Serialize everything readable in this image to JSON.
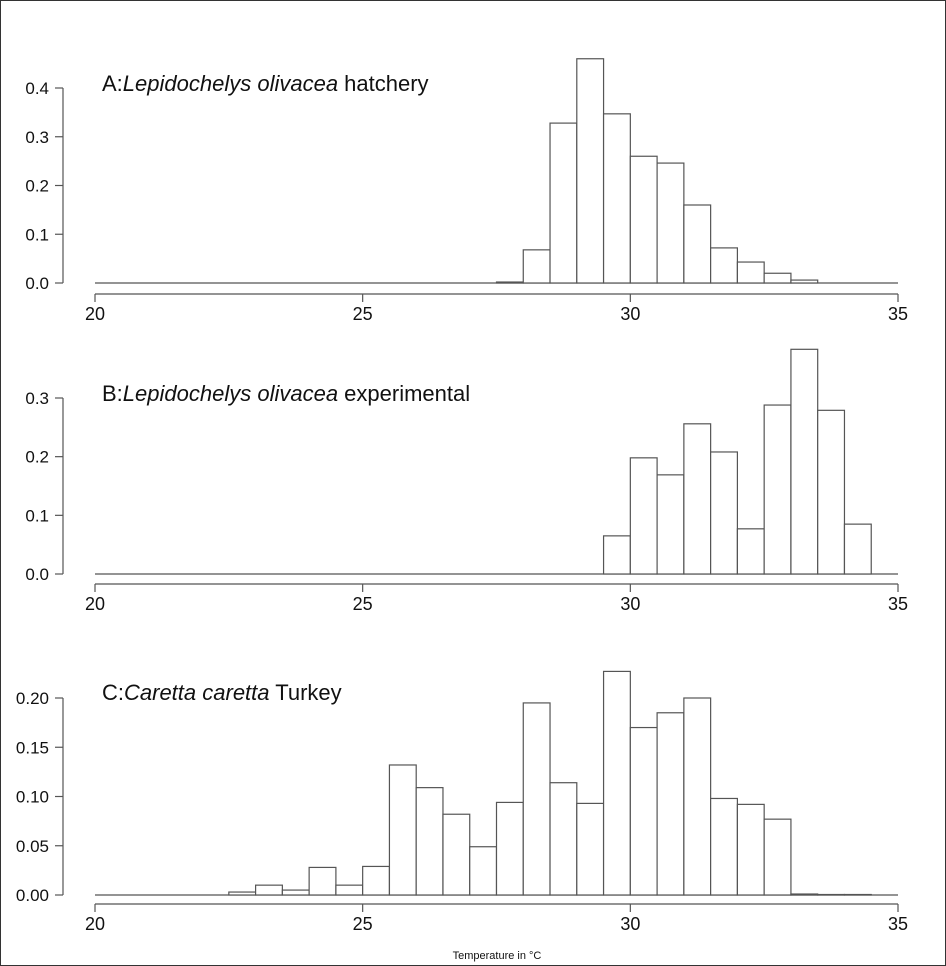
{
  "chart_data": [
    {
      "type": "bar",
      "title_prefix": "A:",
      "title_italic": "Lepidochelys olivacea",
      "title_suffix": " hatchery",
      "bin_width": 0.5,
      "bin_starts": [
        27.5,
        28,
        28.5,
        29,
        29.5,
        30,
        30.5,
        31,
        31.5,
        32,
        32.5,
        33
      ],
      "values": [
        0.002,
        0.068,
        0.328,
        0.46,
        0.347,
        0.26,
        0.246,
        0.16,
        0.072,
        0.043,
        0.02,
        0.006
      ],
      "xlim": [
        20,
        35
      ],
      "ylim": [
        0,
        0.4
      ],
      "xticks": [
        "20",
        "25",
        "30",
        "35"
      ],
      "yticks": [
        "0.0",
        "0.1",
        "0.2",
        "0.3",
        "0.4"
      ]
    },
    {
      "type": "bar",
      "title_prefix": "B:",
      "title_italic": "Lepidochelys olivacea",
      "title_suffix": " experimental",
      "bin_width": 0.5,
      "bin_starts": [
        29.5,
        30,
        30.5,
        31,
        31.5,
        32,
        32.5,
        33,
        33.5,
        34
      ],
      "values": [
        0.065,
        0.198,
        0.169,
        0.256,
        0.208,
        0.077,
        0.288,
        0.383,
        0.279,
        0.085
      ],
      "xlim": [
        20,
        35
      ],
      "ylim": [
        0,
        0.3
      ],
      "xticks": [
        "20",
        "25",
        "30",
        "35"
      ],
      "yticks": [
        "0.0",
        "0.1",
        "0.2",
        "0.3"
      ]
    },
    {
      "type": "bar",
      "title_prefix": "C:",
      "title_italic": "Caretta caretta",
      "title_suffix": " Turkey",
      "bin_width": 0.5,
      "bin_starts": [
        22.5,
        23,
        23.5,
        24,
        24.5,
        25,
        25.5,
        26,
        26.5,
        27,
        27.5,
        28,
        28.5,
        29,
        29.5,
        30,
        30.5,
        31,
        31.5,
        32,
        32.5,
        33,
        33.5,
        34
      ],
      "values": [
        0.003,
        0.01,
        0.005,
        0.028,
        0.01,
        0.029,
        0.132,
        0.109,
        0.082,
        0.049,
        0.094,
        0.195,
        0.114,
        0.093,
        0.227,
        0.17,
        0.185,
        0.2,
        0.098,
        0.092,
        0.077,
        0.001,
        0.0005,
        0.0005
      ],
      "xlim": [
        20,
        35
      ],
      "ylim": [
        0,
        0.2
      ],
      "xticks": [
        "20",
        "25",
        "30",
        "35"
      ],
      "yticks": [
        "0.00",
        "0.05",
        "0.10",
        "0.15",
        "0.20"
      ],
      "xlabel": "Temperature in °C"
    }
  ]
}
